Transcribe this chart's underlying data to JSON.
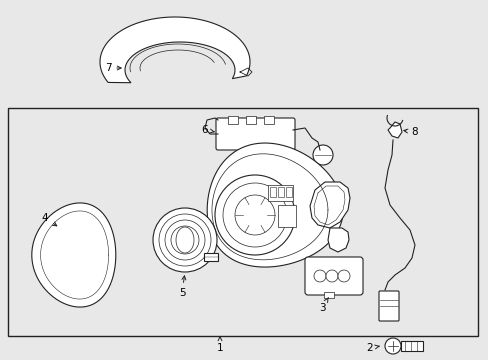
{
  "background_color": "#e8e8e8",
  "box_facecolor": "#e8e8e8",
  "line_color": "#222222",
  "label_color": "#000000",
  "fig_w": 4.89,
  "fig_h": 3.6,
  "dpi": 100
}
